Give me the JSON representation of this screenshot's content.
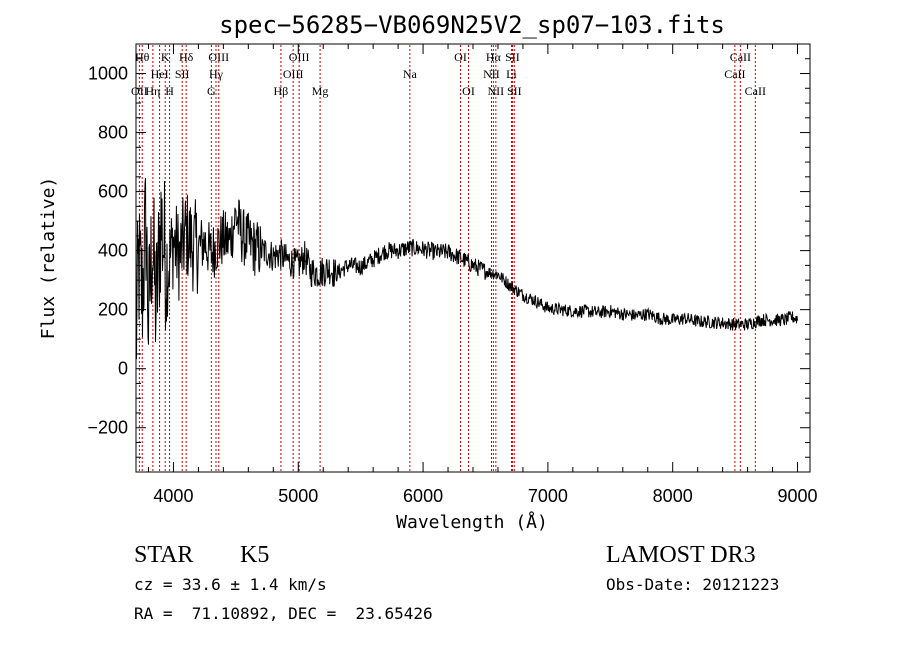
{
  "chart_data": {
    "type": "line",
    "title": "spec−56285−VB069N25V2_sp07−103.fits",
    "xlabel": "Wavelength (Å)",
    "ylabel": "Flux (relative)",
    "xlim": [
      3700,
      9100
    ],
    "ylim": [
      -350,
      1100
    ],
    "xticks": [
      4000,
      5000,
      6000,
      7000,
      8000,
      9000
    ],
    "xtick_labels": [
      "4000",
      "5000",
      "6000",
      "7000",
      "8000",
      "9000"
    ],
    "yticks": [
      -200,
      0,
      200,
      400,
      600,
      800,
      1000
    ],
    "ytick_labels": [
      "−200",
      "0",
      "200",
      "400",
      "600",
      "800",
      "1000"
    ],
    "series": [
      {
        "name": "flux",
        "color": "#000000",
        "x": [
          3700,
          3720,
          3750,
          3780,
          3800,
          3830,
          3860,
          3900,
          3950,
          4000,
          4050,
          4100,
          4150,
          4200,
          4250,
          4300,
          4350,
          4400,
          4450,
          4500,
          4550,
          4600,
          4650,
          4700,
          4750,
          4800,
          4850,
          4900,
          4950,
          5000,
          5050,
          5100,
          5150,
          5200,
          5250,
          5300,
          5400,
          5500,
          5600,
          5700,
          5800,
          5900,
          6000,
          6100,
          6200,
          6300,
          6400,
          6500,
          6600,
          6700,
          6800,
          6900,
          7000,
          7100,
          7200,
          7300,
          7400,
          7500,
          7600,
          7700,
          7800,
          7900,
          8000,
          8100,
          8200,
          8300,
          8400,
          8500,
          8600,
          8700,
          8800,
          8900,
          8950,
          9000
        ],
        "y": [
          80,
          350,
          250,
          500,
          150,
          450,
          200,
          500,
          330,
          430,
          380,
          460,
          420,
          410,
          430,
          390,
          420,
          440,
          430,
          520,
          450,
          430,
          410,
          400,
          395,
          380,
          390,
          370,
          360,
          350,
          380,
          330,
          325,
          330,
          340,
          320,
          350,
          345,
          370,
          400,
          400,
          410,
          405,
          395,
          395,
          375,
          350,
          330,
          320,
          280,
          250,
          230,
          205,
          200,
          195,
          195,
          190,
          195,
          185,
          180,
          185,
          170,
          165,
          170,
          160,
          158,
          155,
          150,
          150,
          165,
          165,
          165,
          175,
          170
        ]
      }
    ],
    "lines": [
      {
        "name": "Oii_3727",
        "x": 3727,
        "label": "OII",
        "row": 3
      },
      {
        "name": "Htheta",
        "x": 3750,
        "label": "Hθ",
        "row": 1
      },
      {
        "name": "Heta",
        "x": 3835,
        "label": "Hη",
        "row": 3
      },
      {
        "name": "Hei",
        "x": 3889,
        "label": "HeI",
        "row": 2
      },
      {
        "name": "K",
        "x": 3934,
        "label": "K",
        "row": 1
      },
      {
        "name": "H",
        "x": 3969,
        "label": "H",
        "row": 3
      },
      {
        "name": "Sii_4070",
        "x": 4070,
        "label": "SII",
        "row": 2
      },
      {
        "name": "Hdelta",
        "x": 4102,
        "label": "Hδ",
        "row": 1
      },
      {
        "name": "G",
        "x": 4304,
        "label": "G",
        "row": 3
      },
      {
        "name": "Hgamma",
        "x": 4341,
        "label": "Hγ",
        "row": 2
      },
      {
        "name": "Oiii_4363",
        "x": 4363,
        "label": "OIII",
        "row": 1
      },
      {
        "name": "Hbeta",
        "x": 4861,
        "label": "Hβ",
        "row": 3
      },
      {
        "name": "Oiii_4959",
        "x": 4959,
        "label": "OIII",
        "row": 2
      },
      {
        "name": "Oiii_5007",
        "x": 5007,
        "label": "OIII",
        "row": 1
      },
      {
        "name": "Mg",
        "x": 5175,
        "label": "Mg",
        "row": 3
      },
      {
        "name": "Na",
        "x": 5894,
        "label": "Na",
        "row": 2
      },
      {
        "name": "Oi_6300",
        "x": 6300,
        "label": "OI",
        "row": 1
      },
      {
        "name": "Oi_6364",
        "x": 6364,
        "label": "OI",
        "row": 3
      },
      {
        "name": "Nii_6548",
        "x": 6548,
        "label": "NII",
        "row": 2
      },
      {
        "name": "Halpha",
        "x": 6563,
        "label": "Hα",
        "row": 1
      },
      {
        "name": "Nii_6583",
        "x": 6583,
        "label": "NII",
        "row": 3
      },
      {
        "name": "Li",
        "x": 6708,
        "label": "Li",
        "row": 2
      },
      {
        "name": "Sii_6716",
        "x": 6716,
        "label": "SII",
        "row": 1
      },
      {
        "name": "Sii_6731",
        "x": 6731,
        "label": "SII",
        "row": 3
      },
      {
        "name": "Caii_8498",
        "x": 8498,
        "label": "CaII",
        "row": 2
      },
      {
        "name": "Caii_8542",
        "x": 8542,
        "label": "CaII",
        "row": 1
      },
      {
        "name": "Caii_8662",
        "x": 8662,
        "label": "CaII",
        "row": 3
      }
    ],
    "line_color": "#cc0000"
  },
  "info": {
    "object_class": "STAR",
    "subclass": "K5",
    "survey": "LAMOST DR3",
    "redshift": "cz = 33.6 ± 1.4 km/s",
    "obs_date": "Obs-Date: 20121223",
    "coords": "RA =  71.10892, DEC =  23.65426"
  }
}
